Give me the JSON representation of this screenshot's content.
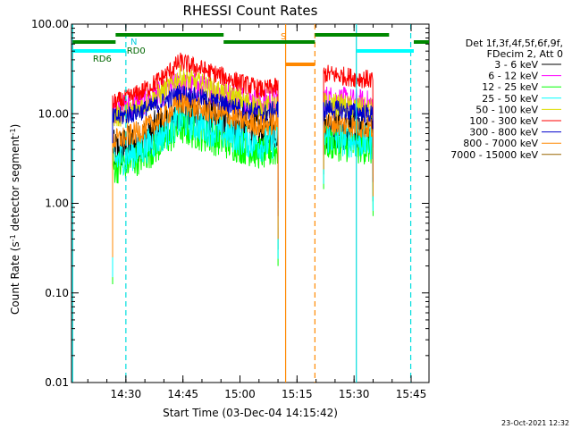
{
  "chart_data": {
    "type": "line",
    "title": "RHESSI Count Rates",
    "xlabel": "Start Time (03-Dec-04 14:15:42)",
    "ylabel_parts": [
      "Count Rate (s",
      "-1",
      " detector segment",
      "-1",
      ")"
    ],
    "y_scale": "log",
    "ylim": [
      0.01,
      100
    ],
    "x_unit": "minutes after 14:15:42",
    "xlim": [
      0,
      94
    ],
    "x_ticks": [
      {
        "t": 14.3,
        "label": "14:30"
      },
      {
        "t": 29.3,
        "label": "14:45"
      },
      {
        "t": 44.3,
        "label": "15:00"
      },
      {
        "t": 59.3,
        "label": "15:15"
      },
      {
        "t": 74.3,
        "label": "15:30"
      },
      {
        "t": 89.3,
        "label": "15:45"
      }
    ],
    "y_ticks": [
      {
        "v": 0.01,
        "label": "0.01"
      },
      {
        "v": 0.1,
        "label": "0.10"
      },
      {
        "v": 1,
        "label": "1.00"
      },
      {
        "v": 10,
        "label": "10.00"
      },
      {
        "v": 100,
        "label": "100.00"
      }
    ],
    "legend": {
      "header": [
        "Det 1f,3f,4f,5f,6f,9f,",
        "FDecim 2, Att 0"
      ],
      "placement": "right"
    },
    "series": [
      {
        "name": "3 - 6 keV",
        "color": "#000000",
        "level1": 3.8,
        "peak": 11.0,
        "end1": 5.5,
        "level2": 7.0,
        "noise": 0.55
      },
      {
        "name": "6 - 12 keV",
        "color": "#ff00ff",
        "level1": 11.0,
        "peak": 22.0,
        "end1": 12.0,
        "level2": 15.0,
        "noise": 0.35
      },
      {
        "name": "12 - 25 keV",
        "color": "#00ff00",
        "level1": 2.5,
        "peak": 7.0,
        "end1": 3.2,
        "level2": 4.8,
        "noise": 0.45
      },
      {
        "name": "25 - 50 keV",
        "color": "#00ffff",
        "level1": 3.0,
        "peak": 8.5,
        "end1": 4.0,
        "level2": 5.5,
        "noise": 0.45
      },
      {
        "name": "50 - 100 keV",
        "color": "#dddd00",
        "level1": 9.0,
        "peak": 26.0,
        "end1": 10.0,
        "level2": 13.0,
        "noise": 0.3
      },
      {
        "name": "100 - 300 keV",
        "color": "#ff0000",
        "level1": 13.0,
        "peak": 38.0,
        "end1": 16.0,
        "level2": 28.0,
        "noise": 0.25
      },
      {
        "name": "300 - 800 keV",
        "color": "#0000cc",
        "level1": 9.0,
        "peak": 17.0,
        "end1": 9.0,
        "level2": 11.5,
        "noise": 0.25
      },
      {
        "name": "800 - 7000 keV",
        "color": "#ff8800",
        "level1": 5.0,
        "peak": 13.0,
        "end1": 6.5,
        "level2": 8.0,
        "noise": 0.3
      },
      {
        "name": "7000 - 15000 keV",
        "color": "#996600",
        "level1": null,
        "peak": null,
        "end1": null,
        "level2": null,
        "noise": 0
      }
    ],
    "data_intervals": [
      {
        "start": 10.8,
        "end": 54.3,
        "peak_t": 28.5
      },
      {
        "start": 66.3,
        "end": 79.3
      }
    ],
    "event_lines": [
      {
        "t": 56.3,
        "color": "#ff8800",
        "dashed": false
      },
      {
        "t": 64.0,
        "color": "#ff8800",
        "dashed": true
      },
      {
        "t": 14.3,
        "color": "#00dddd",
        "dashed": true
      },
      {
        "t": 74.9,
        "color": "#00dddd",
        "dashed": false
      },
      {
        "t": 89.2,
        "color": "#00dddd",
        "dashed": true
      },
      {
        "t": 0.3,
        "color": "#00dddd",
        "dashed": false
      }
    ],
    "flag_bars": [
      {
        "label": "N",
        "color": "#00ffff",
        "y": 57,
        "segments": [
          [
            0.3,
            14.3
          ],
          [
            75.0,
            90.0
          ]
        ]
      },
      {
        "label": "RD0",
        "color": "#008800",
        "y": 47,
        "segments": [
          [
            0.3,
            11.6
          ],
          [
            40.0,
            64.0
          ],
          [
            90.0,
            94.0
          ]
        ]
      },
      {
        "label": "RD6",
        "color": "#008800",
        "y": 39,
        "segments": [
          [
            11.6,
            40.0
          ],
          [
            64.0,
            83.5
          ]
        ]
      },
      {
        "label": "S",
        "color": "#ff8800",
        "y": 72,
        "segments": [
          [
            56.3,
            64.0
          ]
        ]
      }
    ],
    "timestamp": "23-Oct-2021 12:32"
  }
}
